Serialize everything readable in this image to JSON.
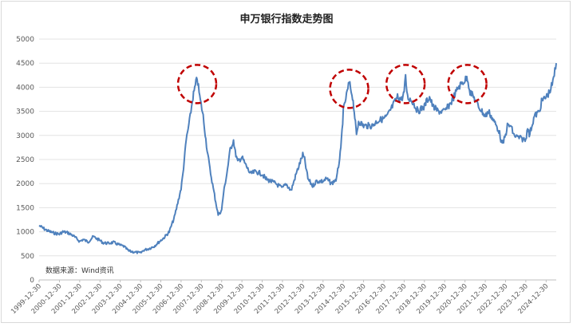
{
  "chart_data": {
    "type": "line",
    "title": "申万银行指数走势图",
    "source_note": "数据来源：Wind资讯",
    "ylim": [
      0,
      5000
    ],
    "yticks": [
      0,
      500,
      1000,
      1500,
      2000,
      2500,
      3000,
      3500,
      4000,
      4500,
      5000
    ],
    "xlim": [
      "1999-12-30",
      "2025-06-30"
    ],
    "xtick_labels": [
      "1999-12-30",
      "2000-12-30",
      "2001-12-30",
      "2002-12-30",
      "2003-12-30",
      "2004-12-30",
      "2005-12-30",
      "2006-12-30",
      "2007-12-30",
      "2008-12-30",
      "2009-12-30",
      "2010-12-30",
      "2011-12-30",
      "2012-12-30",
      "2013-12-30",
      "2014-12-30",
      "2015-12-30",
      "2016-12-30",
      "2017-12-30",
      "2018-12-30",
      "2019-12-30",
      "2020-12-30",
      "2021-12-30",
      "2022-12-30",
      "2023-12-30",
      "2024-12-30"
    ],
    "grid": true,
    "line_color": "#4f81bd",
    "highlight_color": "#c00000",
    "series": [
      {
        "x": [
          "1999-12-30",
          "2000-03-01",
          "2000-06-01",
          "2000-09-01",
          "2000-12-30",
          "2001-03-01",
          "2001-06-01",
          "2001-09-01",
          "2001-12-30",
          "2002-03-01",
          "2002-06-01",
          "2002-09-01",
          "2002-12-30",
          "2003-03-01",
          "2003-06-01",
          "2003-09-01",
          "2003-12-30",
          "2004-03-01",
          "2004-06-01",
          "2004-09-01",
          "2004-12-30",
          "2005-03-01",
          "2005-06-01",
          "2005-09-01",
          "2005-12-30",
          "2006-03-01",
          "2006-06-01",
          "2006-09-01",
          "2006-12-30",
          "2007-02-01",
          "2007-04-01",
          "2007-06-01",
          "2007-08-01",
          "2007-10-15",
          "2007-12-01",
          "2008-02-01",
          "2008-04-01",
          "2008-06-01",
          "2008-08-01",
          "2008-10-28",
          "2008-12-30",
          "2009-02-01",
          "2009-04-01",
          "2009-06-01",
          "2009-07-31",
          "2009-09-01",
          "2009-10-15",
          "2009-12-30",
          "2010-03-01",
          "2010-06-01",
          "2010-09-01",
          "2010-12-30",
          "2011-03-01",
          "2011-06-01",
          "2011-09-01",
          "2011-12-30",
          "2012-03-01",
          "2012-06-01",
          "2012-09-01",
          "2012-12-30",
          "2013-02-01",
          "2013-04-01",
          "2013-06-25",
          "2013-09-01",
          "2013-12-30",
          "2014-03-01",
          "2014-06-01",
          "2014-09-01",
          "2014-11-15",
          "2014-12-30",
          "2015-02-01",
          "2015-04-15",
          "2015-06-15",
          "2015-07-15",
          "2015-08-25",
          "2015-10-01",
          "2015-12-30",
          "2016-03-01",
          "2016-06-01",
          "2016-09-01",
          "2016-12-30",
          "2017-03-01",
          "2017-06-01",
          "2017-09-01",
          "2017-11-15",
          "2017-12-30",
          "2018-01-24",
          "2018-03-01",
          "2018-06-01",
          "2018-09-01",
          "2018-12-30",
          "2019-02-01",
          "2019-04-01",
          "2019-06-01",
          "2019-09-01",
          "2019-12-30",
          "2020-03-01",
          "2020-05-01",
          "2020-07-01",
          "2020-09-01",
          "2020-12-30",
          "2021-02-10",
          "2021-04-01",
          "2021-06-01",
          "2021-09-01",
          "2021-12-30",
          "2022-03-01",
          "2022-06-01",
          "2022-09-01",
          "2022-10-31",
          "2022-12-30",
          "2023-02-01",
          "2023-04-01",
          "2023-06-01",
          "2023-09-01",
          "2023-12-30",
          "2024-02-01",
          "2024-03-01",
          "2024-06-01",
          "2024-09-01",
          "2024-10-08",
          "2024-12-30",
          "2025-03-01",
          "2025-05-01",
          "2025-06-30"
        ],
        "values": [
          1130,
          1080,
          1020,
          980,
          950,
          1000,
          980,
          920,
          800,
          840,
          790,
          900,
          820,
          770,
          760,
          780,
          720,
          700,
          600,
          580,
          560,
          620,
          650,
          700,
          820,
          880,
          1000,
          1300,
          1900,
          2200,
          2900,
          3300,
          3800,
          4200,
          3800,
          3400,
          2800,
          2300,
          1900,
          1350,
          1450,
          1800,
          2200,
          2700,
          2900,
          2650,
          2450,
          2550,
          2400,
          2200,
          2250,
          2200,
          2100,
          2050,
          2000,
          1900,
          2000,
          1850,
          2200,
          2600,
          2500,
          2100,
          1950,
          2050,
          2050,
          2100,
          2000,
          2100,
          2700,
          3500,
          3700,
          4100,
          3800,
          3500,
          3000,
          3300,
          3200,
          3200,
          3200,
          3300,
          3350,
          3400,
          3600,
          3800,
          3750,
          3900,
          4200,
          3800,
          3700,
          3500,
          3600,
          3700,
          3800,
          3600,
          3500,
          3500,
          3600,
          3700,
          3850,
          4000,
          4150,
          4200,
          3900,
          3800,
          3600,
          3400,
          3500,
          3300,
          3100,
          2800,
          3000,
          3200,
          3200,
          3000,
          2950,
          2900,
          3200,
          3000,
          3400,
          3500,
          3700,
          3800,
          3900,
          4100,
          4500
        ]
      }
    ],
    "highlighted_peaks": [
      "2007-10-15",
      "2015-04-15",
      "2018-01-24",
      "2021-02-10"
    ]
  }
}
